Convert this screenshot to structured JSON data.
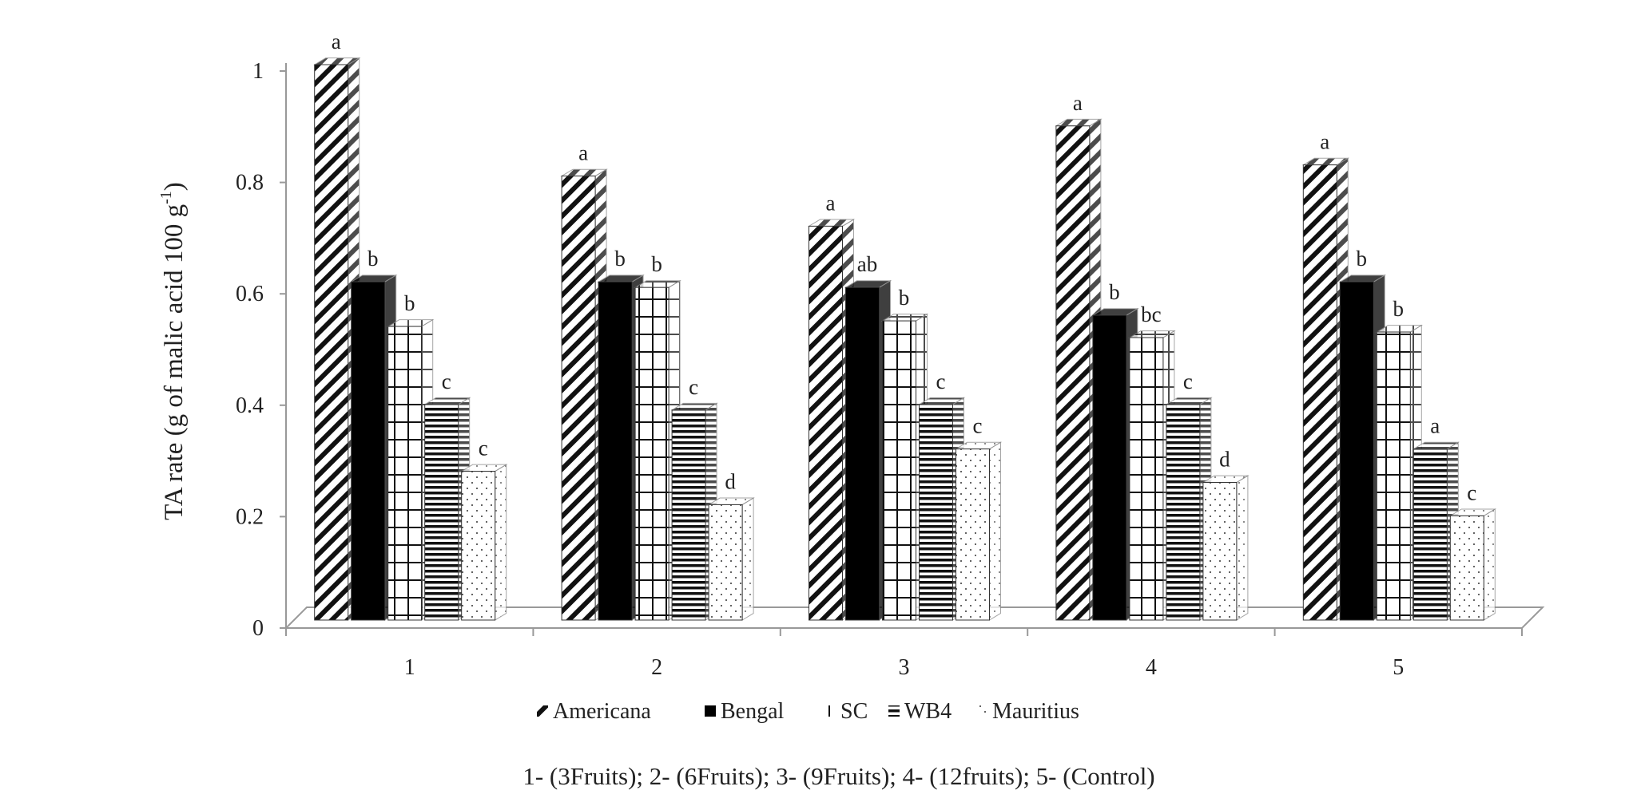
{
  "chart_data": {
    "type": "bar",
    "ylabel": "TA rate (g of malic acid 100 g-1)",
    "ylabel_parts": {
      "main": "TA rate (g of malic  acid  100 g",
      "sup": "-1",
      "end": ")"
    },
    "ylim": [
      0,
      1
    ],
    "yticks": [
      "0",
      "0.2",
      "0.4",
      "0.6",
      "0.8",
      "1"
    ],
    "categories": [
      "1",
      "2",
      "3",
      "4",
      "5"
    ],
    "caption": "1- (3Fruits); 2- (6Fruits); 3- (9Fruits); 4- (12fruits); 5- (Control)",
    "legend_position": "bottom",
    "grid": false,
    "series": [
      {
        "name": "Americana",
        "pattern": "diagonal-hatch",
        "values": [
          1.0,
          0.8,
          0.71,
          0.89,
          0.82
        ],
        "letters": [
          "a",
          "a",
          "a",
          "a",
          "a"
        ]
      },
      {
        "name": "Bengal",
        "pattern": "solid-black",
        "values": [
          0.61,
          0.61,
          0.6,
          0.55,
          0.61
        ],
        "letters": [
          "b",
          "b",
          "ab",
          "b",
          "b"
        ]
      },
      {
        "name": "SC",
        "pattern": "grid",
        "values": [
          0.53,
          0.6,
          0.54,
          0.51,
          0.52
        ],
        "letters": [
          "b",
          "b",
          "b",
          "bc",
          "b"
        ]
      },
      {
        "name": "WB4",
        "pattern": "horizontal-lines",
        "values": [
          0.39,
          0.38,
          0.39,
          0.39,
          0.31
        ],
        "letters": [
          "c",
          "c",
          "c",
          "c",
          "a"
        ]
      },
      {
        "name": "Mauritius",
        "pattern": "dots",
        "values": [
          0.27,
          0.21,
          0.31,
          0.25,
          0.19
        ],
        "letters": [
          "c",
          "d",
          "c",
          "d",
          "c"
        ]
      }
    ]
  }
}
